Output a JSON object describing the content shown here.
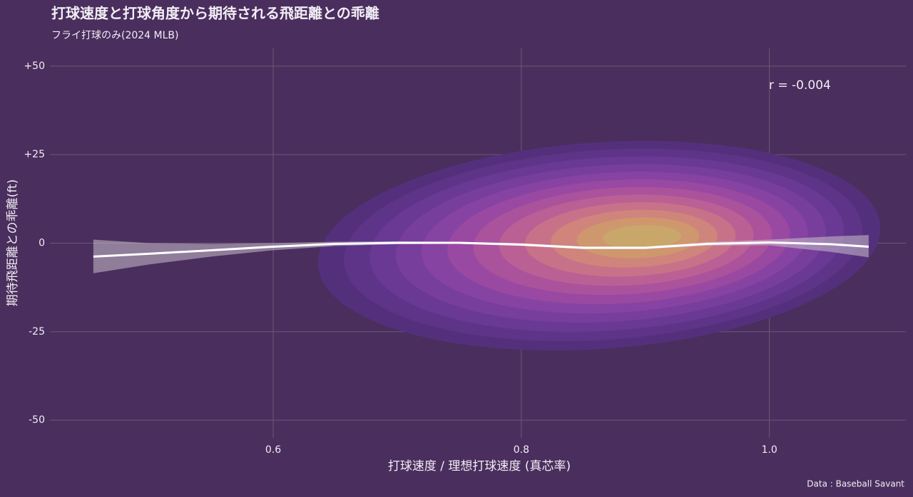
{
  "chart_data": {
    "type": "density",
    "title": "打球速度と打球角度から期待される飛距離との乖離",
    "subtitle": "フライ打球のみ(2024 MLB)",
    "x_label": "打球速度 / 理想打球速度 (真芯率)",
    "y_label": "期待飛距離との乖離(ft)",
    "annotation": "r = -0.004",
    "caption": "Data : Baseball Savant",
    "xlim": [
      0.42,
      1.11
    ],
    "ylim": [
      -55,
      55
    ],
    "xticks": [
      0.6,
      0.8,
      {
        "value": 1,
        "label": "1.0"
      }
    ],
    "yticks": [
      {
        "value": 50,
        "label": "+50"
      },
      {
        "value": 25,
        "label": "+25"
      },
      0,
      -25,
      -50
    ],
    "grid": true,
    "x": [
      0.455,
      0.5,
      0.55,
      0.6,
      0.65,
      0.7,
      0.75,
      0.8,
      0.85,
      0.9,
      0.95,
      1.0,
      1.05,
      1.08
    ],
    "values": [
      -3.8,
      -3,
      -2,
      -1,
      -0.2,
      0.1,
      0.1,
      -0.4,
      -1.3,
      -1.3,
      -0.2,
      0.2,
      -0.3,
      -1
    ],
    "band_lower": [
      -8.5,
      -6,
      -3.8,
      -2,
      -0.8,
      -0.3,
      -0.2,
      -0.8,
      -1.7,
      -1.7,
      -0.7,
      -0.6,
      -2.5,
      -4
    ],
    "band_upper": [
      1,
      0,
      -0.2,
      0,
      0.4,
      0.5,
      0.4,
      0,
      -0.9,
      -0.9,
      0.3,
      1,
      1.9,
      2.3
    ],
    "color": "#ffffff"
  }
}
